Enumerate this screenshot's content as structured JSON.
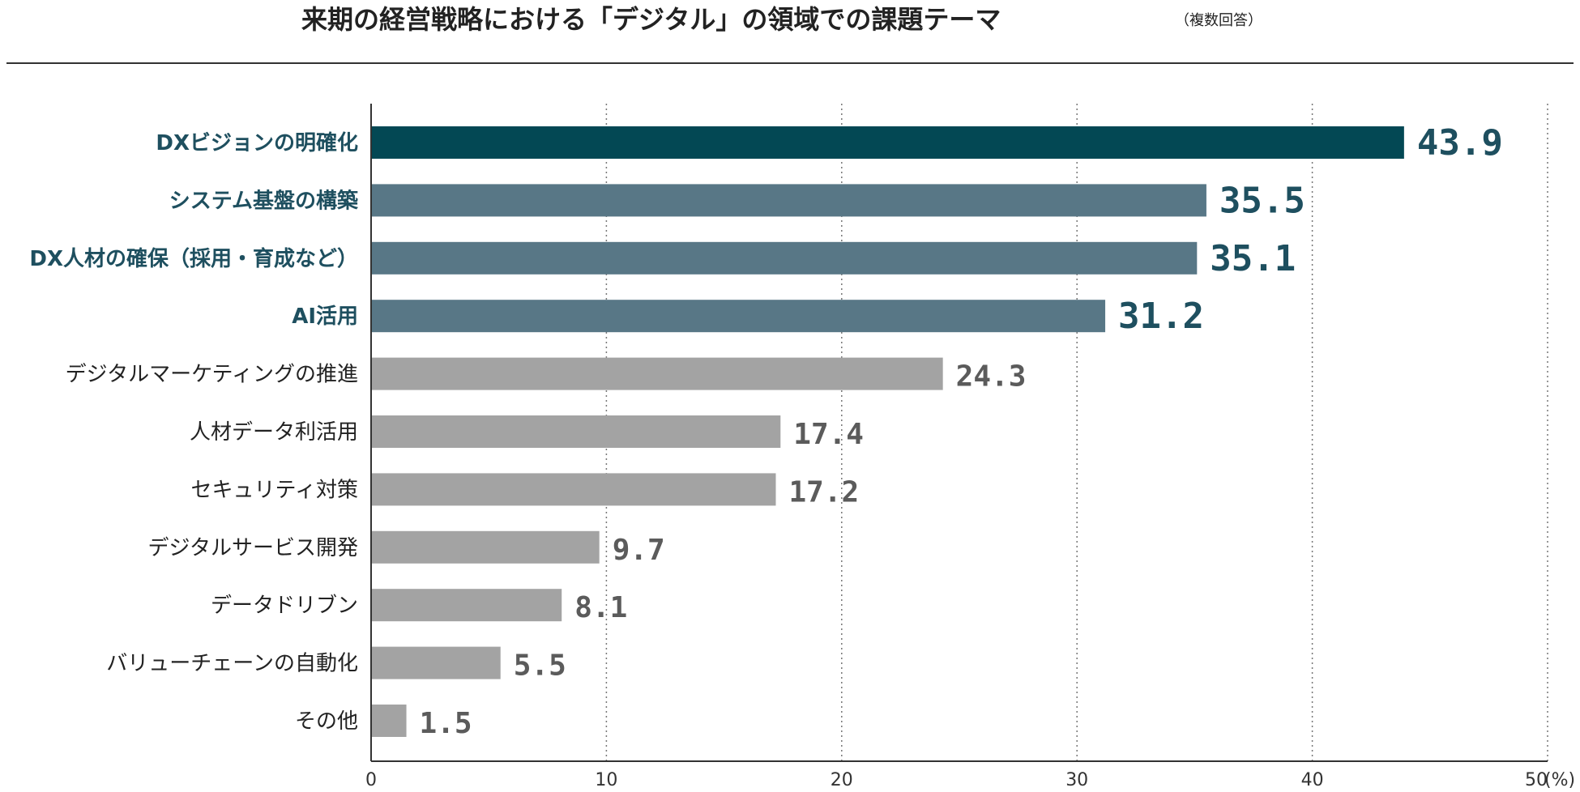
{
  "chart_data": {
    "type": "bar",
    "orientation": "horizontal",
    "title": "来期の経営戦略における「デジタル」の領域での課題テーマ",
    "subtitle": "（複数回答）",
    "xlabel": "",
    "ylabel": "",
    "unit": "(%)",
    "xlim": [
      0,
      50
    ],
    "xticks": [
      0,
      10,
      20,
      30,
      40,
      50
    ],
    "grid": "vertical-dotted",
    "categories": [
      "DXビジョンの明確化",
      "システム基盤の構築",
      "DX人材の確保（採用・育成など）",
      "AI活用",
      "デジタルマーケティングの推進",
      "人材データ利活用",
      "セキュリティ対策",
      "デジタルサービス開発",
      "データドリブン",
      "バリューチェーンの自動化",
      "その他"
    ],
    "values": [
      43.9,
      35.5,
      35.1,
      31.2,
      24.3,
      17.4,
      17.2,
      9.7,
      8.1,
      5.5,
      1.5
    ],
    "value_labels": [
      "43.9",
      "35.5",
      "35.1",
      "31.2",
      "24.3",
      "17.4",
      "17.2",
      "9.7",
      "8.1",
      "5.5",
      "1.5"
    ],
    "highlight": [
      true,
      true,
      true,
      true,
      false,
      false,
      false,
      false,
      false,
      false,
      false
    ],
    "colors": {
      "top": "#034854",
      "highlight": "#587786",
      "normal": "#a3a3a3",
      "highlight_text": "#1e4f5f",
      "normal_text": "#222222",
      "normal_value": "#5b5b5b",
      "axis": "#333333",
      "grid": "#777777",
      "rule": "#333333"
    }
  }
}
